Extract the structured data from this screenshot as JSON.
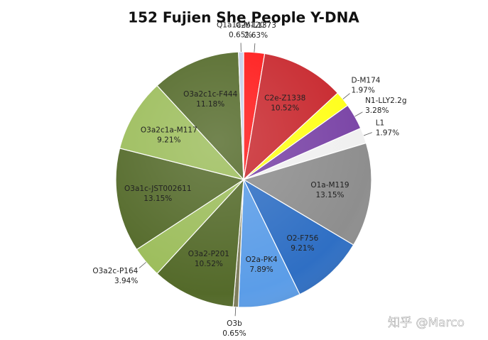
{
  "chart_data": {
    "type": "pie",
    "title": "152 Fujien She People Y-DNA",
    "categories": [
      "C2b-L1373",
      "C2e-Z1338",
      "D-M174",
      "N1-LLY2.2g",
      "L1",
      "O1a-M119",
      "O2-F756",
      "O2a-PK4",
      "O3b",
      "O3a2-P201",
      "O3a2c-P164",
      "O3a1c-JST002611",
      "O3a2c1a-M117",
      "O3a2c1c-F444",
      "Q1a1a-M120"
    ],
    "values": [
      2.63,
      10.52,
      1.97,
      3.28,
      1.97,
      13.15,
      9.21,
      7.89,
      0.65,
      10.52,
      3.94,
      13.15,
      9.21,
      11.18,
      0.65
    ],
    "value_labels": [
      "2.63%",
      "10.52%",
      "1.97%",
      "3.28%",
      "1.97%",
      "13.15%",
      "9.21%",
      "7.89%",
      "0.65%",
      "10.52%",
      "3.94%",
      "13.15%",
      "9.21%",
      "11.18%",
      "0.65%"
    ],
    "colors": [
      "#ff1a1a",
      "#c8282e",
      "#ffff1a",
      "#7a44a6",
      "#f0f0f0",
      "#8e8e8e",
      "#2f6fc4",
      "#5b9de8",
      "#7d7d5c",
      "#546a2a",
      "#9cbd5b",
      "#546a2a",
      "#9cbd5b",
      "#546a2a",
      "#c6d0ea"
    ],
    "watermark": "知乎 @Marco"
  }
}
